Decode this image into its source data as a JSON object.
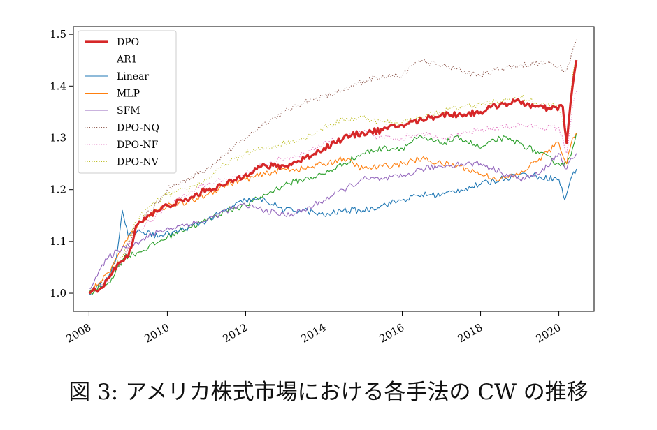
{
  "caption": "図 3: アメリカ株式市場における各手法の CW の推移",
  "chart_data": {
    "type": "line",
    "title": "",
    "xlabel": "",
    "ylabel": "",
    "xlim": [
      2007.6,
      2020.9
    ],
    "ylim": [
      0.965,
      1.515
    ],
    "xticks": [
      2008,
      2010,
      2012,
      2014,
      2016,
      2018,
      2020
    ],
    "xtick_labels": [
      "2008",
      "2010",
      "2012",
      "2014",
      "2016",
      "2018",
      "2020"
    ],
    "yticks": [
      1.0,
      1.1,
      1.2,
      1.3,
      1.4,
      1.5
    ],
    "ytick_labels": [
      "1.0",
      "1.1",
      "1.2",
      "1.3",
      "1.4",
      "1.5"
    ],
    "grid": false,
    "legend_position": "upper-left",
    "series": [
      {
        "name": "DPO",
        "color": "#d62728",
        "style": "solid",
        "width": "thick",
        "points": [
          [
            2008.0,
            1.0
          ],
          [
            2008.3,
            1.01
          ],
          [
            2008.6,
            1.04
          ],
          [
            2008.8,
            1.06
          ],
          [
            2009.0,
            1.07
          ],
          [
            2009.2,
            1.13
          ],
          [
            2009.5,
            1.15
          ],
          [
            2009.8,
            1.16
          ],
          [
            2010.0,
            1.17
          ],
          [
            2010.5,
            1.18
          ],
          [
            2011.0,
            1.2
          ],
          [
            2011.5,
            1.21
          ],
          [
            2012.0,
            1.23
          ],
          [
            2012.4,
            1.245
          ],
          [
            2013.0,
            1.245
          ],
          [
            2013.5,
            1.26
          ],
          [
            2014.0,
            1.28
          ],
          [
            2014.5,
            1.3
          ],
          [
            2015.0,
            1.31
          ],
          [
            2015.5,
            1.315
          ],
          [
            2016.0,
            1.325
          ],
          [
            2016.5,
            1.335
          ],
          [
            2017.0,
            1.345
          ],
          [
            2017.5,
            1.345
          ],
          [
            2018.0,
            1.35
          ],
          [
            2018.5,
            1.365
          ],
          [
            2019.0,
            1.37
          ],
          [
            2019.4,
            1.36
          ],
          [
            2019.8,
            1.355
          ],
          [
            2020.1,
            1.36
          ],
          [
            2020.2,
            1.29
          ],
          [
            2020.25,
            1.33
          ],
          [
            2020.35,
            1.4
          ],
          [
            2020.45,
            1.45
          ]
        ]
      },
      {
        "name": "AR1",
        "color": "#2ca02c",
        "style": "solid",
        "width": "thin",
        "points": [
          [
            2008.0,
            1.0
          ],
          [
            2008.5,
            1.02
          ],
          [
            2008.9,
            1.07
          ],
          [
            2009.3,
            1.08
          ],
          [
            2009.8,
            1.1
          ],
          [
            2010.3,
            1.12
          ],
          [
            2011.0,
            1.14
          ],
          [
            2011.5,
            1.16
          ],
          [
            2012.0,
            1.17
          ],
          [
            2012.5,
            1.19
          ],
          [
            2013.0,
            1.21
          ],
          [
            2013.5,
            1.22
          ],
          [
            2014.0,
            1.23
          ],
          [
            2014.5,
            1.25
          ],
          [
            2015.0,
            1.27
          ],
          [
            2015.5,
            1.28
          ],
          [
            2016.0,
            1.28
          ],
          [
            2016.4,
            1.3
          ],
          [
            2017.0,
            1.29
          ],
          [
            2017.5,
            1.3
          ],
          [
            2018.0,
            1.28
          ],
          [
            2018.5,
            1.3
          ],
          [
            2019.0,
            1.29
          ],
          [
            2019.5,
            1.27
          ],
          [
            2020.0,
            1.25
          ],
          [
            2020.2,
            1.25
          ],
          [
            2020.35,
            1.28
          ],
          [
            2020.45,
            1.31
          ]
        ]
      },
      {
        "name": "Linear",
        "color": "#1f77b4",
        "style": "solid",
        "width": "thin",
        "points": [
          [
            2008.0,
            1.0
          ],
          [
            2008.4,
            1.02
          ],
          [
            2008.7,
            1.07
          ],
          [
            2008.85,
            1.16
          ],
          [
            2009.0,
            1.11
          ],
          [
            2009.3,
            1.12
          ],
          [
            2009.8,
            1.11
          ],
          [
            2010.3,
            1.12
          ],
          [
            2011.0,
            1.14
          ],
          [
            2011.5,
            1.16
          ],
          [
            2012.0,
            1.18
          ],
          [
            2012.5,
            1.18
          ],
          [
            2013.0,
            1.16
          ],
          [
            2013.5,
            1.16
          ],
          [
            2014.0,
            1.15
          ],
          [
            2014.5,
            1.16
          ],
          [
            2015.0,
            1.16
          ],
          [
            2015.5,
            1.17
          ],
          [
            2016.0,
            1.18
          ],
          [
            2016.5,
            1.19
          ],
          [
            2017.0,
            1.19
          ],
          [
            2017.5,
            1.2
          ],
          [
            2018.0,
            1.21
          ],
          [
            2018.5,
            1.22
          ],
          [
            2019.0,
            1.23
          ],
          [
            2019.5,
            1.225
          ],
          [
            2020.0,
            1.22
          ],
          [
            2020.15,
            1.18
          ],
          [
            2020.3,
            1.22
          ],
          [
            2020.45,
            1.24
          ]
        ]
      },
      {
        "name": "MLP",
        "color": "#ff7f0e",
        "style": "solid",
        "width": "thin",
        "points": [
          [
            2008.0,
            1.0
          ],
          [
            2008.5,
            1.04
          ],
          [
            2008.8,
            1.08
          ],
          [
            2009.1,
            1.12
          ],
          [
            2009.5,
            1.15
          ],
          [
            2010.0,
            1.17
          ],
          [
            2010.5,
            1.175
          ],
          [
            2011.0,
            1.19
          ],
          [
            2011.5,
            1.21
          ],
          [
            2012.0,
            1.22
          ],
          [
            2012.5,
            1.23
          ],
          [
            2013.0,
            1.24
          ],
          [
            2013.5,
            1.24
          ],
          [
            2014.0,
            1.25
          ],
          [
            2014.5,
            1.26
          ],
          [
            2015.0,
            1.24
          ],
          [
            2015.5,
            1.245
          ],
          [
            2016.0,
            1.25
          ],
          [
            2016.5,
            1.26
          ],
          [
            2017.0,
            1.25
          ],
          [
            2017.5,
            1.245
          ],
          [
            2018.0,
            1.23
          ],
          [
            2018.5,
            1.22
          ],
          [
            2019.0,
            1.23
          ],
          [
            2019.5,
            1.26
          ],
          [
            2020.0,
            1.29
          ],
          [
            2020.2,
            1.25
          ],
          [
            2020.35,
            1.3
          ],
          [
            2020.45,
            1.31
          ]
        ]
      },
      {
        "name": "SFM",
        "color": "#9467bd",
        "style": "solid",
        "width": "thin",
        "points": [
          [
            2008.0,
            1.01
          ],
          [
            2008.5,
            1.07
          ],
          [
            2008.9,
            1.09
          ],
          [
            2009.3,
            1.1
          ],
          [
            2009.8,
            1.12
          ],
          [
            2010.3,
            1.13
          ],
          [
            2011.0,
            1.14
          ],
          [
            2011.5,
            1.16
          ],
          [
            2012.0,
            1.17
          ],
          [
            2012.5,
            1.16
          ],
          [
            2013.0,
            1.15
          ],
          [
            2013.5,
            1.16
          ],
          [
            2014.0,
            1.18
          ],
          [
            2014.5,
            1.2
          ],
          [
            2015.0,
            1.22
          ],
          [
            2015.5,
            1.22
          ],
          [
            2016.0,
            1.225
          ],
          [
            2016.5,
            1.24
          ],
          [
            2017.0,
            1.245
          ],
          [
            2017.5,
            1.25
          ],
          [
            2018.0,
            1.25
          ],
          [
            2018.5,
            1.235
          ],
          [
            2019.0,
            1.22
          ],
          [
            2019.5,
            1.23
          ],
          [
            2020.0,
            1.27
          ],
          [
            2020.2,
            1.24
          ],
          [
            2020.35,
            1.26
          ],
          [
            2020.45,
            1.27
          ]
        ]
      },
      {
        "name": "DPO-NQ",
        "color": "#8c564b",
        "style": "dotted",
        "width": "thin",
        "points": [
          [
            2008.0,
            1.0
          ],
          [
            2008.5,
            1.03
          ],
          [
            2008.9,
            1.07
          ],
          [
            2009.2,
            1.13
          ],
          [
            2009.6,
            1.16
          ],
          [
            2010.0,
            1.2
          ],
          [
            2010.5,
            1.22
          ],
          [
            2011.0,
            1.24
          ],
          [
            2011.5,
            1.27
          ],
          [
            2012.0,
            1.3
          ],
          [
            2012.5,
            1.33
          ],
          [
            2013.0,
            1.35
          ],
          [
            2013.5,
            1.37
          ],
          [
            2014.0,
            1.38
          ],
          [
            2014.5,
            1.39
          ],
          [
            2015.0,
            1.41
          ],
          [
            2015.5,
            1.42
          ],
          [
            2016.0,
            1.42
          ],
          [
            2016.4,
            1.45
          ],
          [
            2017.0,
            1.44
          ],
          [
            2017.5,
            1.43
          ],
          [
            2018.0,
            1.42
          ],
          [
            2018.5,
            1.435
          ],
          [
            2019.0,
            1.44
          ],
          [
            2019.5,
            1.445
          ],
          [
            2020.0,
            1.44
          ],
          [
            2020.2,
            1.43
          ],
          [
            2020.35,
            1.47
          ],
          [
            2020.45,
            1.49
          ]
        ]
      },
      {
        "name": "DPO-NF",
        "color": "#e377c2",
        "style": "dotted",
        "width": "thin",
        "points": [
          [
            2008.0,
            1.0
          ],
          [
            2008.5,
            1.03
          ],
          [
            2008.9,
            1.07
          ],
          [
            2009.2,
            1.12
          ],
          [
            2009.6,
            1.14
          ],
          [
            2010.0,
            1.17
          ],
          [
            2010.5,
            1.19
          ],
          [
            2011.0,
            1.21
          ],
          [
            2011.5,
            1.22
          ],
          [
            2012.0,
            1.23
          ],
          [
            2012.5,
            1.25
          ],
          [
            2013.0,
            1.26
          ],
          [
            2013.5,
            1.27
          ],
          [
            2014.0,
            1.29
          ],
          [
            2014.5,
            1.3
          ],
          [
            2015.0,
            1.31
          ],
          [
            2015.5,
            1.3
          ],
          [
            2016.0,
            1.3
          ],
          [
            2016.5,
            1.31
          ],
          [
            2017.0,
            1.3
          ],
          [
            2017.5,
            1.305
          ],
          [
            2018.0,
            1.315
          ],
          [
            2018.5,
            1.32
          ],
          [
            2019.0,
            1.325
          ],
          [
            2019.5,
            1.32
          ],
          [
            2020.0,
            1.32
          ],
          [
            2020.2,
            1.27
          ],
          [
            2020.35,
            1.36
          ],
          [
            2020.45,
            1.39
          ]
        ]
      },
      {
        "name": "DPO-NV",
        "color": "#bcbd22",
        "style": "dotted",
        "width": "thin",
        "points": [
          [
            2008.0,
            1.0
          ],
          [
            2008.5,
            1.03
          ],
          [
            2008.9,
            1.08
          ],
          [
            2009.2,
            1.14
          ],
          [
            2009.6,
            1.17
          ],
          [
            2010.0,
            1.19
          ],
          [
            2010.5,
            1.2
          ],
          [
            2011.0,
            1.22
          ],
          [
            2011.5,
            1.25
          ],
          [
            2012.0,
            1.27
          ],
          [
            2012.5,
            1.28
          ],
          [
            2013.0,
            1.29
          ],
          [
            2013.5,
            1.3
          ],
          [
            2014.0,
            1.32
          ],
          [
            2014.5,
            1.335
          ],
          [
            2015.0,
            1.34
          ],
          [
            2015.5,
            1.33
          ],
          [
            2016.0,
            1.33
          ],
          [
            2016.5,
            1.34
          ],
          [
            2017.0,
            1.35
          ],
          [
            2017.5,
            1.36
          ],
          [
            2018.0,
            1.365
          ],
          [
            2018.5,
            1.37
          ],
          [
            2019.0,
            1.38
          ],
          [
            2019.5,
            1.365
          ],
          [
            2020.0,
            1.36
          ],
          [
            2020.2,
            1.3
          ],
          [
            2020.35,
            1.42
          ],
          [
            2020.45,
            1.45
          ]
        ]
      }
    ]
  }
}
